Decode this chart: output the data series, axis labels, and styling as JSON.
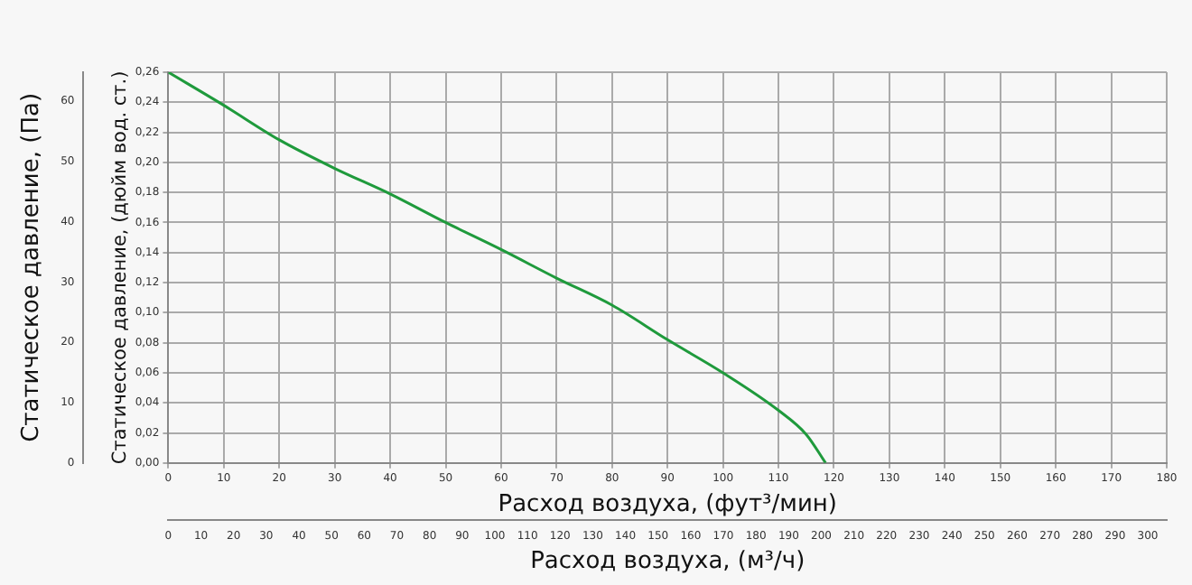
{
  "chart_data": {
    "type": "line",
    "xlabel": "Расход воздуха, (фут³/мин)",
    "ylabel": "Статическое давление, (дюйм вод. ст.)",
    "y2label": "Статическое давление, (Па)",
    "x2label": "Расход воздуха, (м³/ч)",
    "x": [
      0,
      10,
      20,
      30,
      40,
      50,
      60,
      70,
      80,
      90,
      100,
      110,
      115,
      118.5
    ],
    "series": [
      {
        "color": "#1f9a3c",
        "values": [
          0.26,
          0.238,
          0.215,
          0.196,
          0.179,
          0.16,
          0.142,
          0.123,
          0.105,
          0.082,
          0.06,
          0.035,
          0.019,
          0
        ]
      }
    ],
    "xlim": [
      0,
      180
    ],
    "xticks": [
      0,
      10,
      20,
      30,
      40,
      50,
      60,
      70,
      80,
      90,
      100,
      110,
      120,
      130,
      140,
      150,
      160,
      170,
      180
    ],
    "ylim": [
      0,
      0.26
    ],
    "yticks": [
      {
        "value": 0,
        "label": "0,00"
      },
      {
        "value": 0.02,
        "label": "0,02"
      },
      {
        "value": 0.04,
        "label": "0,04"
      },
      {
        "value": 0.06,
        "label": "0,06"
      },
      {
        "value": 0.08,
        "label": "0,08"
      },
      {
        "value": 0.1,
        "label": "0,10"
      },
      {
        "value": 0.12,
        "label": "0,12"
      },
      {
        "value": 0.14,
        "label": "0,14"
      },
      {
        "value": 0.16,
        "label": "0,16"
      },
      {
        "value": 0.18,
        "label": "0,18"
      },
      {
        "value": 0.2,
        "label": "0,20"
      },
      {
        "value": 0.22,
        "label": "0,22"
      },
      {
        "value": 0.24,
        "label": "0,24"
      },
      {
        "value": 0.26,
        "label": "0,26"
      }
    ],
    "y2lim": [
      0,
      64.8
    ],
    "y2ticks": [
      0,
      10,
      20,
      30,
      40,
      50,
      60
    ],
    "x2lim": [
      0,
      305.8
    ],
    "x2ticks": [
      0,
      10,
      20,
      30,
      40,
      50,
      60,
      70,
      80,
      90,
      100,
      110,
      120,
      130,
      140,
      150,
      160,
      170,
      180,
      190,
      200,
      210,
      220,
      230,
      240,
      250,
      260,
      270,
      280,
      290,
      300
    ],
    "grid": true,
    "legend": false,
    "marker": "none",
    "line_style": "solid"
  }
}
